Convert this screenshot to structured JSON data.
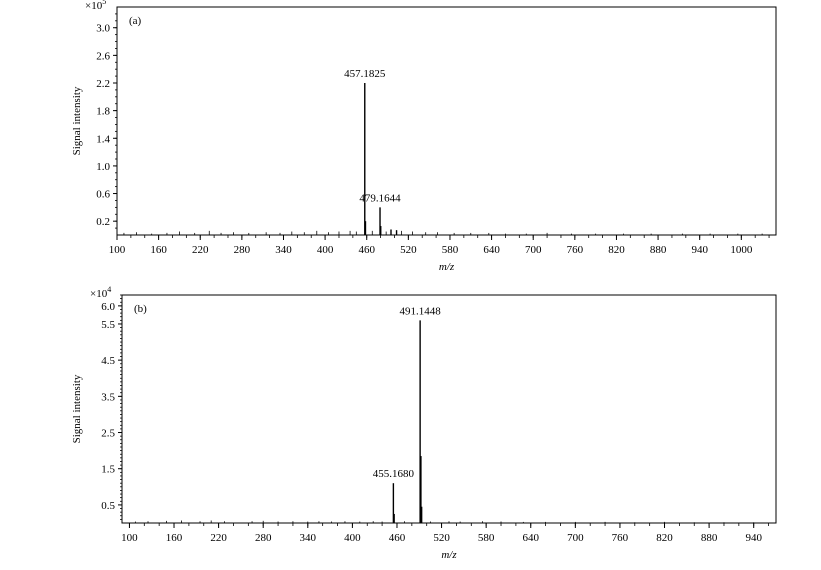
{
  "chart_data": [
    {
      "type": "bar",
      "panel_label": "(a)",
      "multiplier": "×10",
      "multiplier_exp": "5",
      "ylabel": "Signal intensity",
      "xlabel": "m/z",
      "xlim": [
        100,
        1050
      ],
      "ylim": [
        0,
        3.3
      ],
      "yticks": [
        "3.0",
        "2.6",
        "2.2",
        "1.8",
        "1.4",
        "1.0",
        "0.6",
        "0.2"
      ],
      "xticks": [
        "100",
        "160",
        "220",
        "280",
        "340",
        "400",
        "460",
        "520",
        "580",
        "640",
        "700",
        "760",
        "820",
        "880",
        "940",
        "1000"
      ],
      "peaks": [
        {
          "mz": 457.1825,
          "value": 2.2,
          "label": "457.1825"
        },
        {
          "mz": 479.1644,
          "value": 0.4,
          "label": "479.1644"
        },
        {
          "mz": 458.2,
          "value": 0.2
        },
        {
          "mz": 480.2,
          "value": 0.13
        },
        {
          "mz": 495.0,
          "value": 0.08
        },
        {
          "mz": 503.0,
          "value": 0.07
        }
      ],
      "noise": [
        [
          110,
          0.03
        ],
        [
          128,
          0.04
        ],
        [
          150,
          0.02
        ],
        [
          172,
          0.03
        ],
        [
          190,
          0.05
        ],
        [
          212,
          0.03
        ],
        [
          233,
          0.06
        ],
        [
          250,
          0.03
        ],
        [
          268,
          0.04
        ],
        [
          290,
          0.03
        ],
        [
          315,
          0.04
        ],
        [
          335,
          0.03
        ],
        [
          352,
          0.05
        ],
        [
          370,
          0.04
        ],
        [
          388,
          0.06
        ],
        [
          405,
          0.04
        ],
        [
          420,
          0.05
        ],
        [
          436,
          0.06
        ],
        [
          445,
          0.05
        ],
        [
          468,
          0.06
        ],
        [
          488,
          0.05
        ],
        [
          510,
          0.06
        ],
        [
          526,
          0.05
        ],
        [
          545,
          0.04
        ],
        [
          562,
          0.04
        ],
        [
          586,
          0.03
        ],
        [
          610,
          0.03
        ],
        [
          636,
          0.03
        ],
        [
          660,
          0.02
        ],
        [
          690,
          0.02
        ],
        [
          720,
          0.03
        ],
        [
          755,
          0.02
        ],
        [
          790,
          0.02
        ],
        [
          830,
          0.02
        ],
        [
          870,
          0.02
        ],
        [
          915,
          0.02
        ],
        [
          955,
          0.02
        ],
        [
          995,
          0.02
        ],
        [
          1030,
          0.02
        ]
      ]
    },
    {
      "type": "bar",
      "panel_label": "(b)",
      "multiplier": "×10",
      "multiplier_exp": "4",
      "ylabel": "Signal intensity",
      "xlabel": "m/z",
      "xlim": [
        90,
        970
      ],
      "ylim": [
        0,
        6.3
      ],
      "yticks": [
        "6.0",
        "5.5",
        "4.5",
        "3.5",
        "2.5",
        "1.5",
        "0.5"
      ],
      "xticks": [
        "100",
        "160",
        "220",
        "280",
        "340",
        "400",
        "460",
        "520",
        "580",
        "640",
        "700",
        "760",
        "820",
        "880",
        "940"
      ],
      "peaks": [
        {
          "mz": 491.1448,
          "value": 5.6,
          "label": "491.1448"
        },
        {
          "mz": 455.168,
          "value": 1.1,
          "label": "455.1680"
        },
        {
          "mz": 492.2,
          "value": 1.85
        },
        {
          "mz": 493.2,
          "value": 0.45
        },
        {
          "mz": 456.2,
          "value": 0.25
        }
      ],
      "noise": [
        [
          108,
          0.04
        ],
        [
          125,
          0.05
        ],
        [
          150,
          0.06
        ],
        [
          170,
          0.07
        ],
        [
          195,
          0.05
        ],
        [
          210,
          0.07
        ],
        [
          228,
          0.05
        ],
        [
          265,
          0.05
        ],
        [
          280,
          0.06
        ],
        [
          300,
          0.04
        ],
        [
          320,
          0.05
        ],
        [
          340,
          0.04
        ],
        [
          355,
          0.05
        ],
        [
          372,
          0.04
        ],
        [
          390,
          0.05
        ],
        [
          410,
          0.04
        ],
        [
          428,
          0.05
        ],
        [
          440,
          0.04
        ],
        [
          470,
          0.05
        ],
        [
          505,
          0.04
        ],
        [
          530,
          0.05
        ],
        [
          545,
          0.04
        ],
        [
          575,
          0.05
        ],
        [
          600,
          0.04
        ],
        [
          630,
          0.03
        ],
        [
          660,
          0.03
        ],
        [
          700,
          0.03
        ],
        [
          740,
          0.03
        ],
        [
          780,
          0.02
        ],
        [
          820,
          0.03
        ],
        [
          860,
          0.02
        ],
        [
          900,
          0.02
        ],
        [
          940,
          0.02
        ]
      ]
    }
  ]
}
